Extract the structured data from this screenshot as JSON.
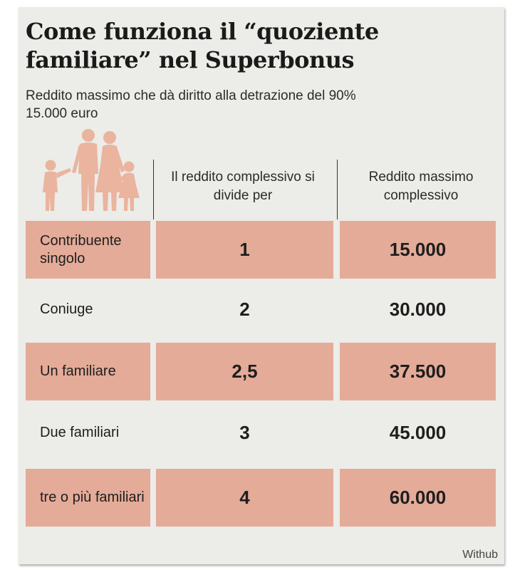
{
  "title": "Come funziona il “quoziente familiare” nel Superbonus",
  "subtitle": "Reddito massimo che dà diritto alla detrazione del 90% 15.000 euro",
  "icon": "family-icon",
  "colors": {
    "row_highlight": "#e4ab98",
    "card_background": "#ecece8",
    "icon": "#eab49e"
  },
  "table": {
    "headers": [
      "Il reddito complessivo si divide per",
      "Reddito massimo complessivo"
    ],
    "rows": [
      {
        "label": "Contribuente singolo",
        "divisor": "1",
        "max_income": "15.000"
      },
      {
        "label": "Coniuge",
        "divisor": "2",
        "max_income": "30.000"
      },
      {
        "label": "Un familiare",
        "divisor": "2,5",
        "max_income": "37.500"
      },
      {
        "label": "Due familiari",
        "divisor": "3",
        "max_income": "45.000"
      },
      {
        "label": "tre o più familiari",
        "divisor": "4",
        "max_income": "60.000"
      }
    ]
  },
  "source": "Withub"
}
